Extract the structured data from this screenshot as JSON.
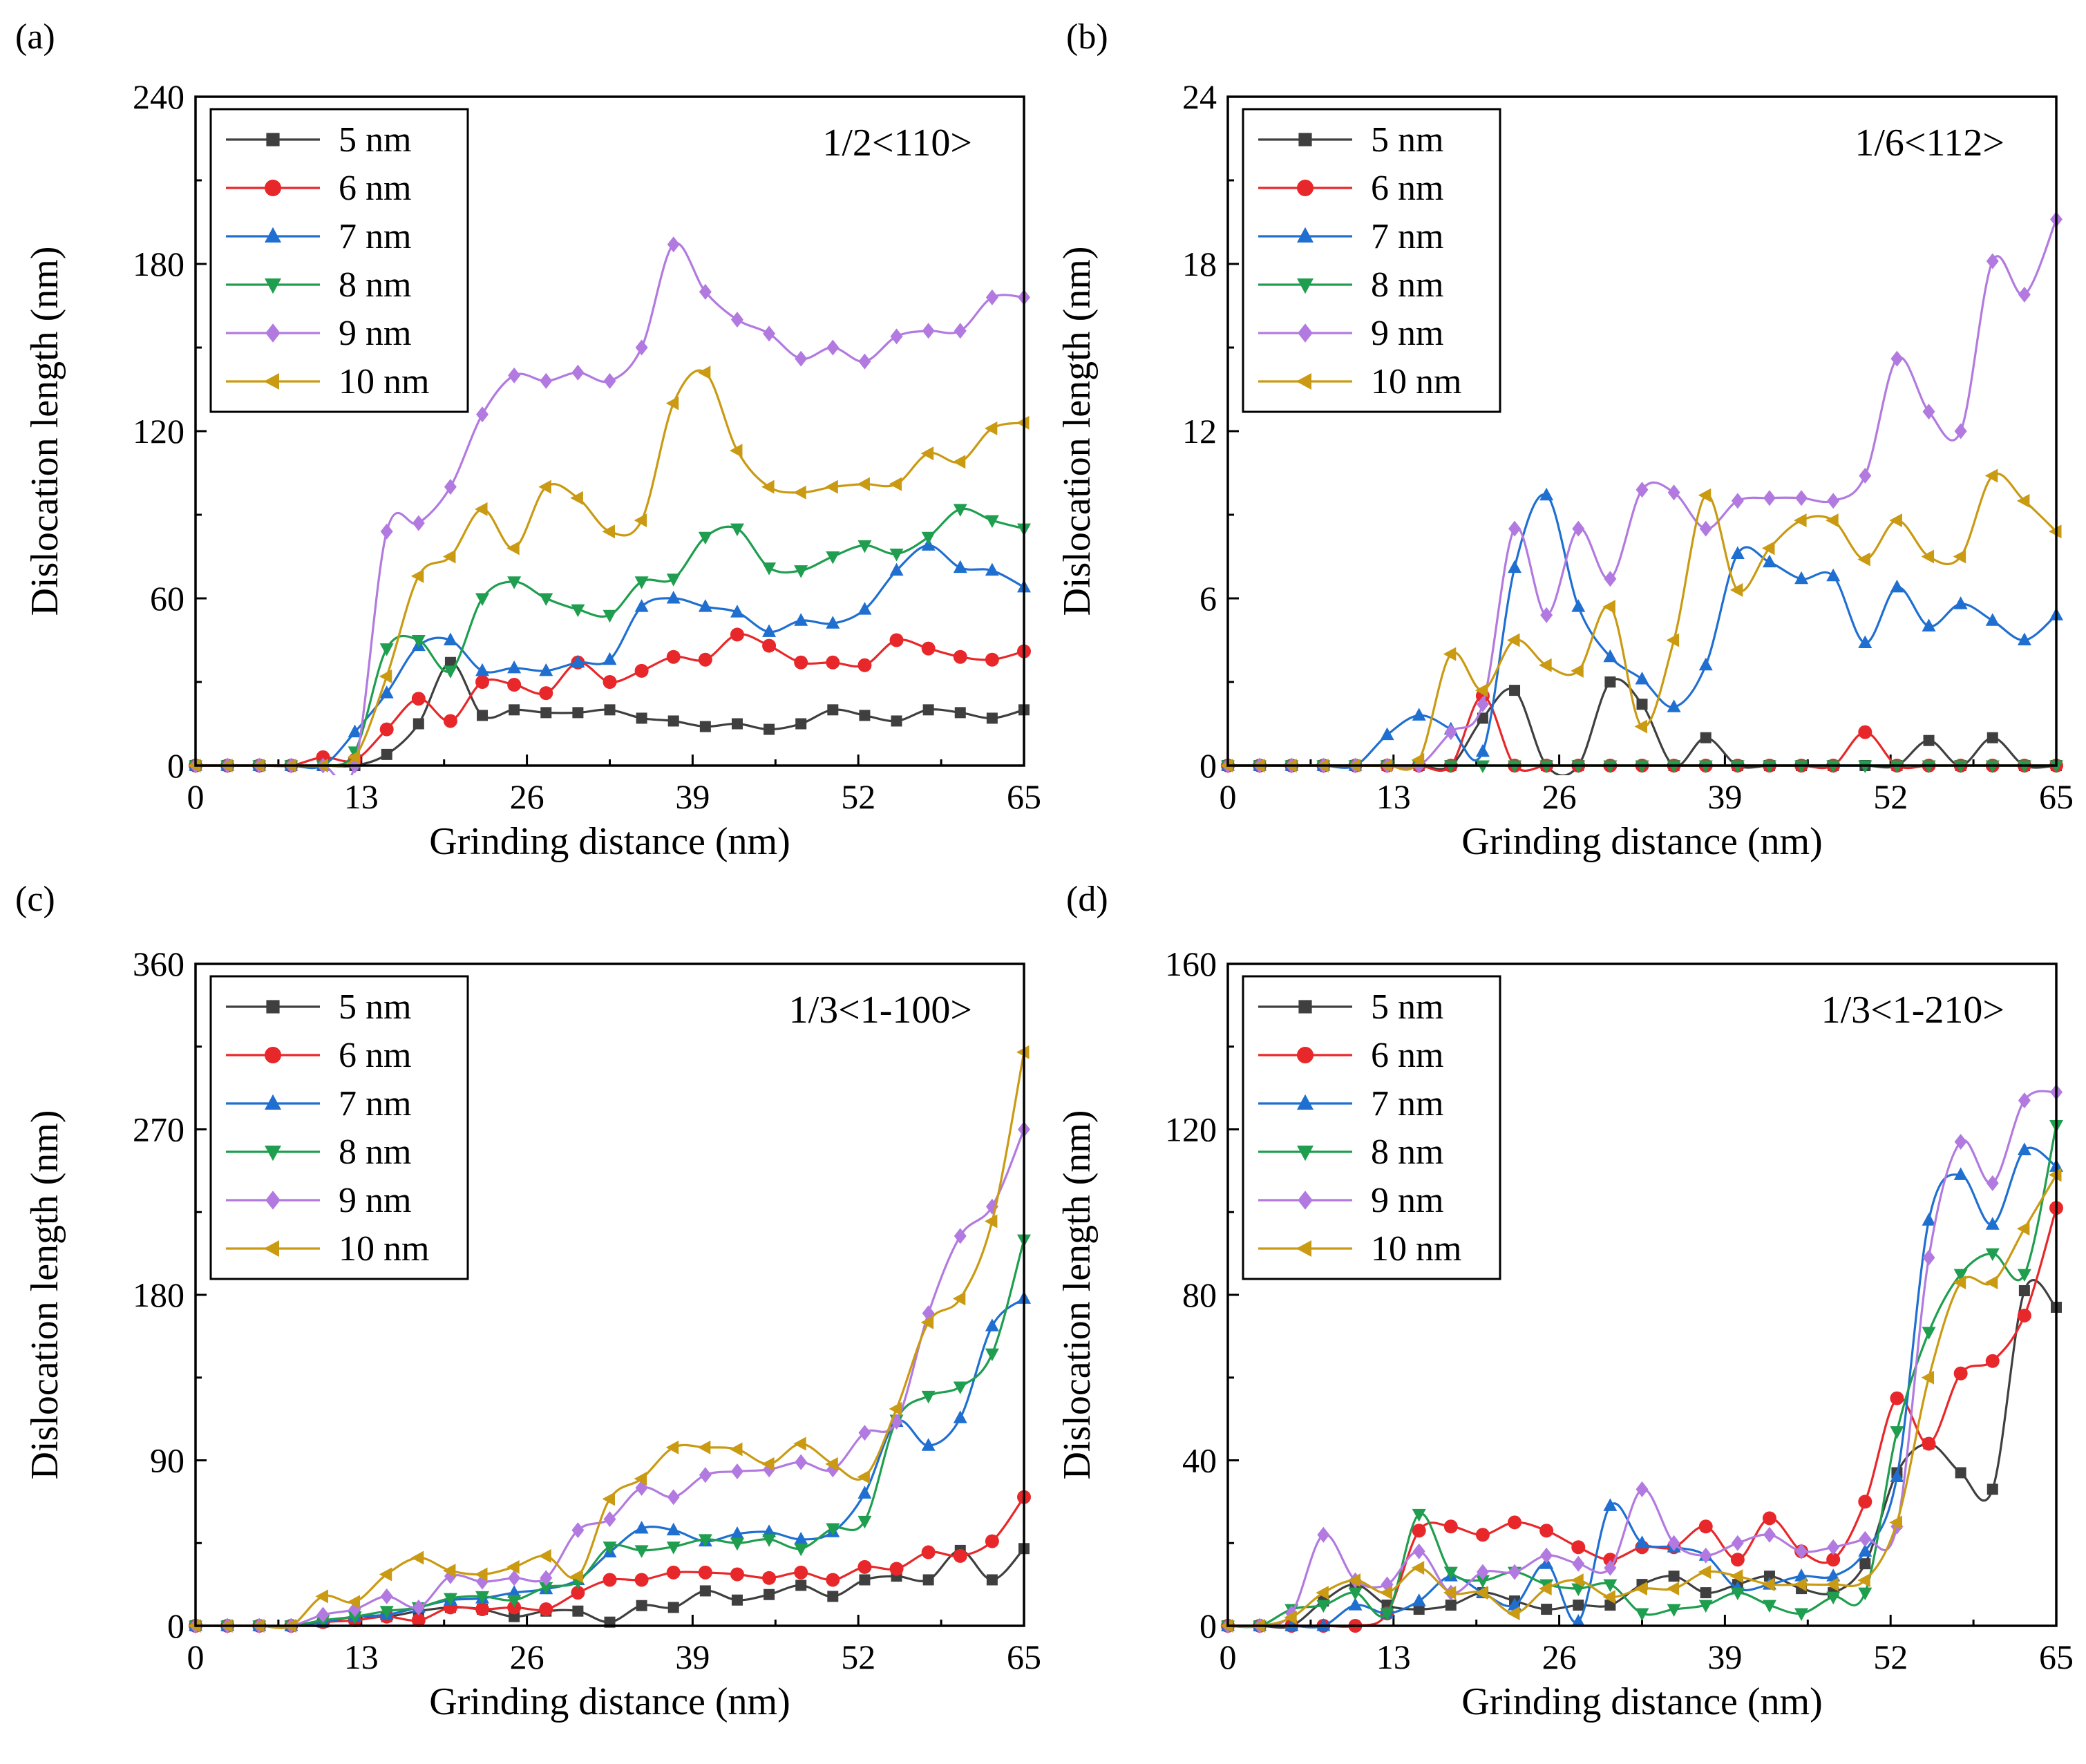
{
  "colors": {
    "5 nm": "#3f3f3f",
    "6 nm": "#e8272a",
    "7 nm": "#1f6fd1",
    "8 nm": "#1e9e4e",
    "9 nm": "#b27ae0",
    "10 nm": "#c99a12"
  },
  "markers": {
    "5 nm": "square",
    "6 nm": "circle",
    "7 nm": "triangle-up",
    "8 nm": "triangle-down",
    "9 nm": "diamond",
    "10 nm": "triangle-left"
  },
  "chart_data": [
    {
      "panel_label": "(a)",
      "type": "line",
      "annotation": "1/2<110>",
      "xlabel": "Grinding distance (nm)",
      "ylabel": "Dislocation length (nm)",
      "xlim": [
        0,
        65
      ],
      "ylim": [
        0,
        240
      ],
      "xticks": [
        "0",
        "13",
        "26",
        "39",
        "52",
        "65"
      ],
      "yticks": [
        "0",
        "60",
        "120",
        "180",
        "240"
      ],
      "legend_position": "top-left",
      "x": [
        0,
        2.5,
        5,
        7.5,
        10,
        12.5,
        15,
        17.5,
        20,
        22.5,
        25,
        27.5,
        30,
        32.5,
        35,
        37.5,
        40,
        42.5,
        45,
        47.5,
        50,
        52.5,
        55,
        57.5,
        60,
        62.5,
        65
      ],
      "series": [
        {
          "name": "5 nm",
          "values": [
            0,
            0,
            0,
            0,
            0,
            0,
            4,
            15,
            37,
            18,
            20,
            19,
            19,
            20,
            17,
            16,
            14,
            15,
            13,
            15,
            20,
            18,
            16,
            20,
            19,
            17,
            20
          ]
        },
        {
          "name": "6 nm",
          "values": [
            0,
            0,
            0,
            0,
            3,
            2,
            13,
            24,
            16,
            30,
            29,
            26,
            37,
            30,
            34,
            39,
            38,
            47,
            43,
            37,
            37,
            36,
            45,
            42,
            39,
            38,
            41
          ]
        },
        {
          "name": "7 nm",
          "values": [
            0,
            0,
            0,
            0,
            0,
            12,
            26,
            43,
            45,
            34,
            35,
            34,
            37,
            38,
            57,
            60,
            57,
            55,
            48,
            52,
            51,
            56,
            70,
            79,
            71,
            70,
            64
          ]
        },
        {
          "name": "8 nm",
          "values": [
            0,
            0,
            0,
            0,
            0,
            5,
            42,
            45,
            34,
            60,
            66,
            60,
            56,
            54,
            66,
            67,
            82,
            85,
            71,
            70,
            75,
            79,
            76,
            82,
            92,
            88,
            85
          ]
        },
        {
          "name": "9 nm",
          "values": [
            0,
            0,
            0,
            0,
            0,
            0,
            84,
            87,
            100,
            126,
            140,
            138,
            141,
            138,
            150,
            187,
            170,
            160,
            155,
            146,
            150,
            145,
            154,
            156,
            156,
            168,
            168
          ]
        },
        {
          "name": "10 nm",
          "values": [
            0,
            0,
            0,
            0,
            0,
            3,
            32,
            68,
            75,
            92,
            78,
            100,
            96,
            84,
            88,
            130,
            141,
            113,
            100,
            98,
            100,
            101,
            101,
            112,
            109,
            121,
            123
          ]
        }
      ]
    },
    {
      "panel_label": "(b)",
      "type": "line",
      "annotation": "1/6<112>",
      "xlabel": "Grinding distance (nm)",
      "ylabel": "Dislocation length (nm)",
      "xlim": [
        0,
        65
      ],
      "ylim": [
        0,
        24
      ],
      "xticks": [
        "0",
        "13",
        "26",
        "39",
        "52",
        "65"
      ],
      "yticks": [
        "0",
        "6",
        "12",
        "18",
        "24"
      ],
      "legend_position": "top-left",
      "x": [
        0,
        2.5,
        5,
        7.5,
        10,
        12.5,
        15,
        17.5,
        20,
        22.5,
        25,
        27.5,
        30,
        32.5,
        35,
        37.5,
        40,
        42.5,
        45,
        47.5,
        50,
        52.5,
        55,
        57.5,
        60,
        62.5,
        65
      ],
      "series": [
        {
          "name": "5 nm",
          "values": [
            0,
            0,
            0,
            0,
            0,
            0,
            0,
            0,
            1.7,
            2.7,
            0,
            0,
            3.0,
            2.2,
            0,
            1.0,
            0,
            0,
            0,
            0,
            0,
            0,
            0.9,
            0,
            1.0,
            0,
            0
          ]
        },
        {
          "name": "6 nm",
          "values": [
            0,
            0,
            0,
            0,
            0,
            0,
            0,
            0,
            2.5,
            0,
            0,
            0,
            0,
            0,
            0,
            0,
            0,
            0,
            0,
            0,
            1.2,
            0,
            0,
            0,
            0,
            0,
            0
          ]
        },
        {
          "name": "7 nm",
          "values": [
            0,
            0,
            0,
            0,
            0,
            1.1,
            1.8,
            1.3,
            0.5,
            7.1,
            9.7,
            5.7,
            3.9,
            3.1,
            2.1,
            3.6,
            7.6,
            7.3,
            6.7,
            6.8,
            4.4,
            6.4,
            5.0,
            5.8,
            5.2,
            4.5,
            5.4
          ]
        },
        {
          "name": "8 nm",
          "values": [
            0,
            0,
            0,
            0,
            0,
            0,
            0,
            0,
            0,
            0,
            0,
            0,
            0,
            0,
            0,
            0,
            0,
            0,
            0,
            0,
            0,
            0,
            0,
            0,
            0,
            0,
            0
          ]
        },
        {
          "name": "9 nm",
          "values": [
            0,
            0,
            0,
            0,
            0,
            0,
            0,
            1.2,
            2.2,
            8.5,
            5.4,
            8.5,
            6.7,
            9.9,
            9.8,
            8.5,
            9.5,
            9.6,
            9.6,
            9.5,
            10.4,
            14.6,
            12.7,
            12.0,
            18.1,
            16.9,
            19.6
          ]
        },
        {
          "name": "10 nm",
          "values": [
            0,
            0,
            0,
            0,
            0,
            0,
            0.2,
            4.0,
            2.7,
            4.5,
            3.6,
            3.4,
            5.7,
            1.4,
            4.5,
            9.7,
            6.3,
            7.8,
            8.8,
            8.8,
            7.4,
            8.8,
            7.5,
            7.5,
            10.4,
            9.5,
            8.4
          ]
        }
      ]
    },
    {
      "panel_label": "(c)",
      "type": "line",
      "annotation": "1/3<1-100>",
      "xlabel": "Grinding distance (nm)",
      "ylabel": "Dislocation length (nm)",
      "xlim": [
        0,
        65
      ],
      "ylim": [
        0,
        360
      ],
      "xticks": [
        "0",
        "13",
        "26",
        "39",
        "52",
        "65"
      ],
      "yticks": [
        "0",
        "90",
        "180",
        "270",
        "360"
      ],
      "legend_position": "top-left",
      "x": [
        0,
        2.5,
        5,
        7.5,
        10,
        12.5,
        15,
        17.5,
        20,
        22.5,
        25,
        27.5,
        30,
        32.5,
        35,
        37.5,
        40,
        42.5,
        45,
        47.5,
        50,
        52.5,
        55,
        57.5,
        60,
        62.5,
        65
      ],
      "series": [
        {
          "name": "5 nm",
          "values": [
            0,
            0,
            0,
            0,
            2,
            5,
            5,
            8,
            10,
            9,
            5,
            8,
            8,
            2,
            11,
            10,
            19,
            14,
            17,
            22,
            16,
            25,
            27,
            25,
            41,
            25,
            42
          ]
        },
        {
          "name": "6 nm",
          "values": [
            0,
            0,
            0,
            0,
            2,
            3,
            5,
            3,
            10,
            9,
            10,
            9,
            18,
            25,
            25,
            29,
            29,
            28,
            26,
            29,
            25,
            32,
            31,
            40,
            38,
            46,
            70
          ]
        },
        {
          "name": "7 nm",
          "values": [
            0,
            0,
            0,
            0,
            2,
            5,
            6,
            10,
            14,
            15,
            18,
            20,
            25,
            40,
            53,
            52,
            46,
            50,
            51,
            47,
            51,
            72,
            111,
            98,
            113,
            163,
            178
          ]
        },
        {
          "name": "8 nm",
          "values": [
            0,
            0,
            0,
            0,
            3,
            5,
            8,
            10,
            15,
            16,
            14,
            21,
            24,
            43,
            41,
            43,
            47,
            45,
            47,
            42,
            53,
            57,
            112,
            125,
            130,
            148,
            210
          ]
        },
        {
          "name": "9 nm",
          "values": [
            0,
            0,
            0,
            0,
            6,
            9,
            16,
            10,
            27,
            24,
            26,
            26,
            52,
            58,
            75,
            70,
            82,
            84,
            85,
            89,
            85,
            105,
            111,
            170,
            212,
            228,
            270
          ]
        },
        {
          "name": "10 nm",
          "values": [
            0,
            0,
            0,
            0,
            16,
            13,
            28,
            37,
            30,
            28,
            32,
            38,
            27,
            69,
            80,
            97,
            97,
            96,
            88,
            99,
            88,
            81,
            118,
            165,
            178,
            220,
            312
          ]
        }
      ]
    },
    {
      "panel_label": "(d)",
      "type": "line",
      "annotation": "1/3<1-210>",
      "xlabel": "Grinding distance (nm)",
      "ylabel": "Dislocation length (nm)",
      "xlim": [
        0,
        65
      ],
      "ylim": [
        0,
        160
      ],
      "xticks": [
        "0",
        "13",
        "26",
        "39",
        "52",
        "65"
      ],
      "yticks": [
        "0",
        "40",
        "80",
        "120",
        "160"
      ],
      "legend_position": "top-left",
      "x": [
        0,
        2.5,
        5,
        7.5,
        10,
        12.5,
        15,
        17.5,
        20,
        22.5,
        25,
        27.5,
        30,
        32.5,
        35,
        37.5,
        40,
        42.5,
        45,
        47.5,
        50,
        52.5,
        55,
        57.5,
        60,
        62.5,
        65
      ],
      "series": [
        {
          "name": "5 nm",
          "values": [
            0,
            0,
            0,
            6,
            10,
            5,
            4,
            5,
            8,
            6,
            4,
            5,
            5,
            10,
            12,
            8,
            10,
            12,
            9,
            8,
            15,
            37,
            44,
            37,
            33,
            81,
            77
          ]
        },
        {
          "name": "6 nm",
          "values": [
            0,
            0,
            0,
            0,
            0,
            3,
            23,
            24,
            22,
            25,
            23,
            19,
            16,
            19,
            19,
            24,
            16,
            26,
            18,
            16,
            30,
            55,
            44,
            61,
            64,
            75,
            101
          ]
        },
        {
          "name": "7 nm",
          "values": [
            0,
            0,
            0,
            0,
            5,
            3,
            6,
            12,
            8,
            5,
            15,
            1,
            29,
            20,
            19,
            17,
            9,
            10,
            12,
            12,
            18,
            36,
            98,
            109,
            97,
            115,
            111
          ]
        },
        {
          "name": "8 nm",
          "values": [
            0,
            0,
            4,
            5,
            8,
            3,
            27,
            13,
            11,
            13,
            10,
            9,
            10,
            3,
            4,
            5,
            8,
            5,
            3,
            7,
            8,
            47,
            71,
            85,
            90,
            85,
            121
          ]
        },
        {
          "name": "9 nm",
          "values": [
            0,
            0,
            3,
            22,
            11,
            10,
            18,
            8,
            13,
            13,
            17,
            15,
            14,
            33,
            20,
            17,
            20,
            22,
            18,
            19,
            21,
            24,
            89,
            117,
            107,
            127,
            129
          ]
        },
        {
          "name": "10 nm",
          "values": [
            0,
            0,
            2,
            8,
            11,
            8,
            14,
            8,
            8,
            3,
            9,
            11,
            7,
            9,
            9,
            13,
            12,
            10,
            10,
            10,
            11,
            25,
            60,
            83,
            83,
            96,
            109
          ]
        }
      ]
    }
  ]
}
